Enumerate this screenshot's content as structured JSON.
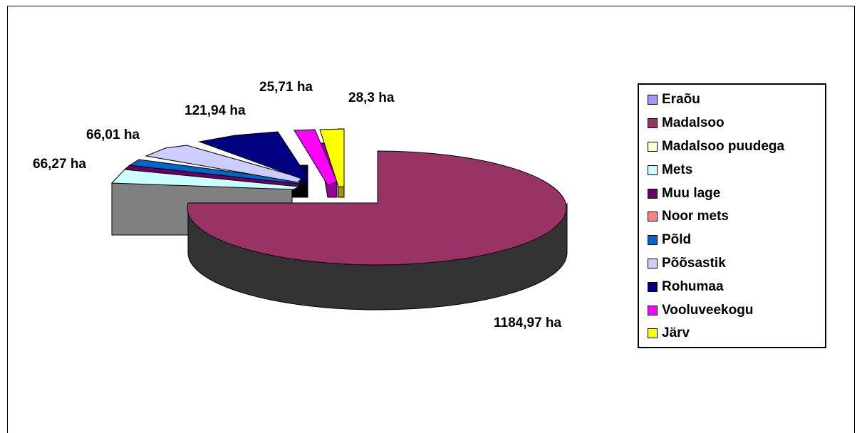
{
  "chart_data": {
    "type": "pie",
    "style": "3d-exploded",
    "unit": "ha",
    "slices": [
      {
        "name": "Eraõu",
        "value": null,
        "color": "#9999FF"
      },
      {
        "name": "Madalsoo",
        "value": 1184.97,
        "label": "1184,97 ha",
        "color": "#993366"
      },
      {
        "name": "Madalsoo puudega",
        "value": null,
        "color": "#FFFFCC"
      },
      {
        "name": "Mets",
        "value": 66.27,
        "label": "66,27 ha",
        "color": "#CCFFFF"
      },
      {
        "name": "Muu lage",
        "value": null,
        "color": "#660066"
      },
      {
        "name": "Noor mets",
        "value": null,
        "color": "#FF8080"
      },
      {
        "name": "Põld",
        "value": null,
        "color": "#0066CC"
      },
      {
        "name": "Põõsastik",
        "value": 66.01,
        "label": "66,01 ha",
        "color": "#CCCCFF"
      },
      {
        "name": "Rohumaa",
        "value": 121.94,
        "label": "121,94 ha",
        "color": "#000080"
      },
      {
        "name": "Vooluveekogu",
        "value": 25.71,
        "label": "25,71 ha",
        "color": "#FF00FF"
      },
      {
        "name": "Järv",
        "value": 28.3,
        "label": "28,3 ha",
        "color": "#FFFF00"
      }
    ],
    "legend": "right"
  }
}
